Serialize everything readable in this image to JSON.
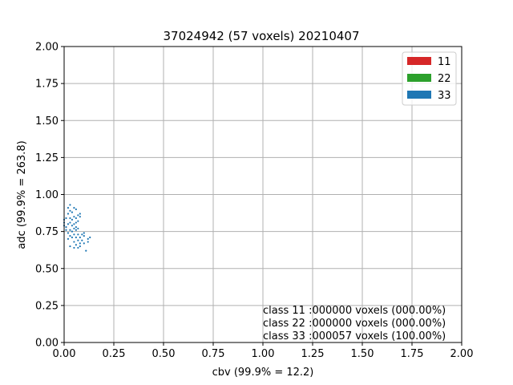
{
  "chart_data": {
    "type": "scatter",
    "title": "37024942 (57 voxels) 20210407",
    "xlabel": "cbv (99.9% = 12.2)",
    "ylabel": "adc (99.9% = 263.8)",
    "xlim": [
      0,
      2
    ],
    "ylim": [
      0,
      2
    ],
    "xticks": [
      "0.00",
      "0.25",
      "0.50",
      "0.75",
      "1.00",
      "1.25",
      "1.50",
      "1.75",
      "2.00"
    ],
    "yticks": [
      "0.00",
      "0.25",
      "0.50",
      "0.75",
      "1.00",
      "1.25",
      "1.50",
      "1.75",
      "2.00"
    ],
    "grid": true,
    "legend_position": "top-right",
    "legend": [
      {
        "label": "11",
        "color": "#d62728"
      },
      {
        "label": "22",
        "color": "#2ca02c"
      },
      {
        "label": "33",
        "color": "#1f77b4"
      }
    ],
    "annotations": [
      "class 11 :000000 voxels (000.00%)",
      "class 22 :000000 voxels (000.00%)",
      "class 33 :000057 voxels (100.00%)"
    ],
    "series": [
      {
        "color": "#1f77b4",
        "points": [
          [
            0.0,
            0.83
          ],
          [
            0.0,
            0.81
          ],
          [
            0.0,
            0.79
          ],
          [
            0.01,
            0.84
          ],
          [
            0.01,
            0.78
          ],
          [
            0.02,
            0.91
          ],
          [
            0.02,
            0.87
          ],
          [
            0.02,
            0.74
          ],
          [
            0.02,
            0.7
          ],
          [
            0.03,
            0.93
          ],
          [
            0.03,
            0.89
          ],
          [
            0.03,
            0.84
          ],
          [
            0.03,
            0.81
          ],
          [
            0.03,
            0.76
          ],
          [
            0.03,
            0.72
          ],
          [
            0.03,
            0.65
          ],
          [
            0.04,
            0.88
          ],
          [
            0.04,
            0.83
          ],
          [
            0.04,
            0.79
          ],
          [
            0.04,
            0.75
          ],
          [
            0.04,
            0.71
          ],
          [
            0.05,
            0.91
          ],
          [
            0.05,
            0.85
          ],
          [
            0.05,
            0.8
          ],
          [
            0.05,
            0.77
          ],
          [
            0.05,
            0.73
          ],
          [
            0.05,
            0.68
          ],
          [
            0.05,
            0.64
          ],
          [
            0.06,
            0.9
          ],
          [
            0.06,
            0.84
          ],
          [
            0.06,
            0.81
          ],
          [
            0.06,
            0.78
          ],
          [
            0.06,
            0.76
          ],
          [
            0.06,
            0.71
          ],
          [
            0.06,
            0.66
          ],
          [
            0.07,
            0.86
          ],
          [
            0.07,
            0.82
          ],
          [
            0.07,
            0.77
          ],
          [
            0.07,
            0.73
          ],
          [
            0.07,
            0.69
          ],
          [
            0.07,
            0.64
          ],
          [
            0.08,
            0.87
          ],
          [
            0.08,
            0.85
          ],
          [
            0.08,
            0.71
          ],
          [
            0.08,
            0.67
          ],
          [
            0.08,
            0.65
          ],
          [
            0.09,
            0.73
          ],
          [
            0.09,
            0.69
          ],
          [
            0.1,
            0.74
          ],
          [
            0.1,
            0.72
          ],
          [
            0.1,
            0.67
          ],
          [
            0.11,
            0.62
          ],
          [
            0.12,
            0.7
          ],
          [
            0.12,
            0.68
          ],
          [
            0.13,
            0.71
          ],
          [
            0.01,
            0.76
          ],
          [
            0.02,
            0.8
          ]
        ]
      }
    ]
  }
}
